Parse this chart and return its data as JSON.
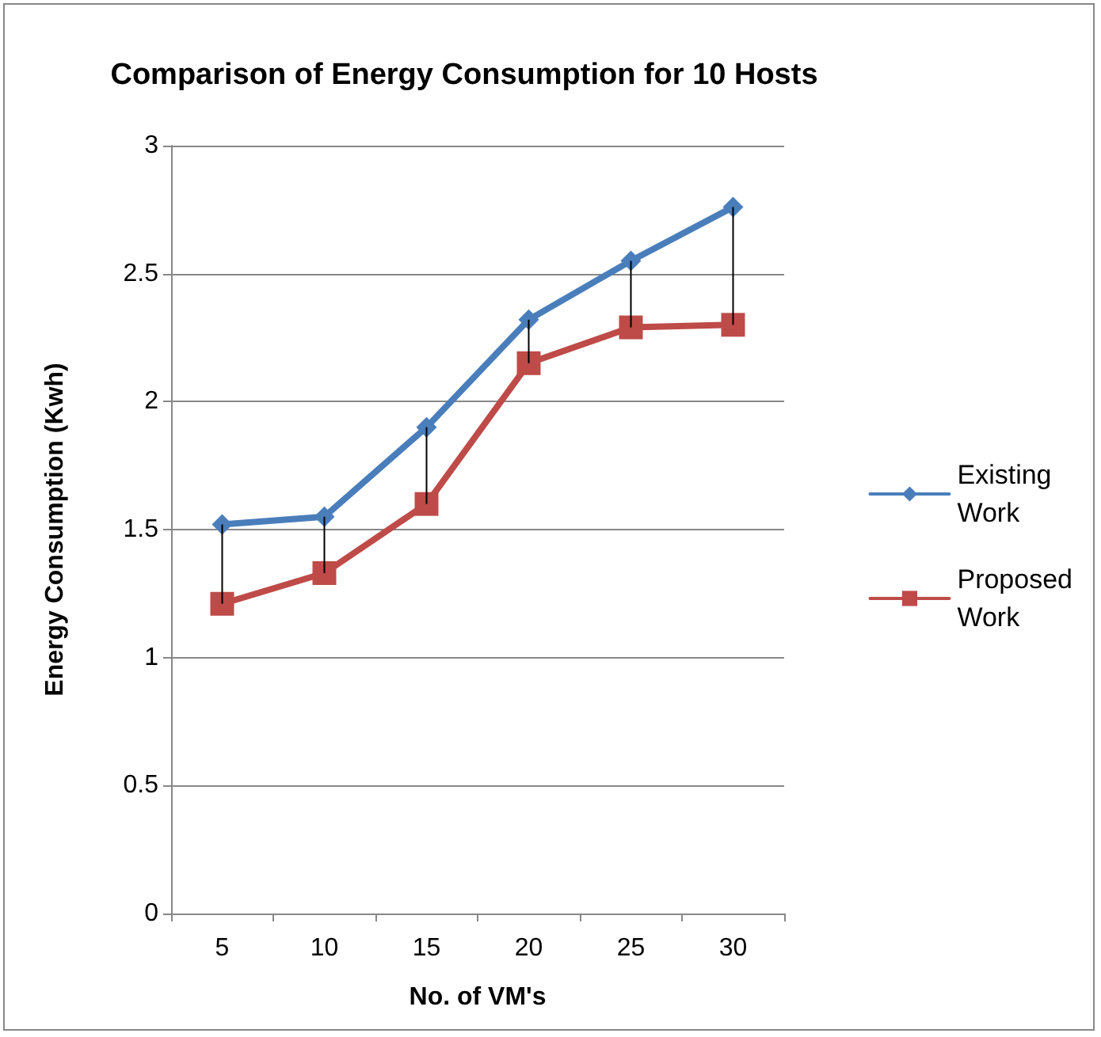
{
  "chart_data": {
    "type": "line",
    "title": "Comparison of Energy Consumption for 10 Hosts",
    "xlabel": "No. of VM's",
    "ylabel": "Energy Consumption (Kwh)",
    "categories": [
      "5",
      "10",
      "15",
      "20",
      "25",
      "30"
    ],
    "series": [
      {
        "name": "Existing Work",
        "color": "#4a7ebb",
        "marker": "diamond",
        "values": [
          1.52,
          1.55,
          1.9,
          2.32,
          2.55,
          2.76
        ],
        "errors": [
          [
            1.21,
            1.52
          ],
          [
            1.33,
            1.55
          ],
          [
            1.6,
            1.9
          ],
          [
            2.15,
            2.32
          ],
          [
            2.29,
            2.55
          ],
          [
            2.3,
            2.76
          ]
        ]
      },
      {
        "name": "Proposed Work",
        "color": "#be4b48",
        "marker": "square",
        "values": [
          1.21,
          1.33,
          1.6,
          2.15,
          2.29,
          2.3
        ]
      }
    ],
    "ylim": [
      0,
      3
    ],
    "yticks": [
      0,
      0.5,
      1,
      1.5,
      2,
      2.5,
      3
    ],
    "grid": "y",
    "legend": "right",
    "line_style": "solid"
  }
}
